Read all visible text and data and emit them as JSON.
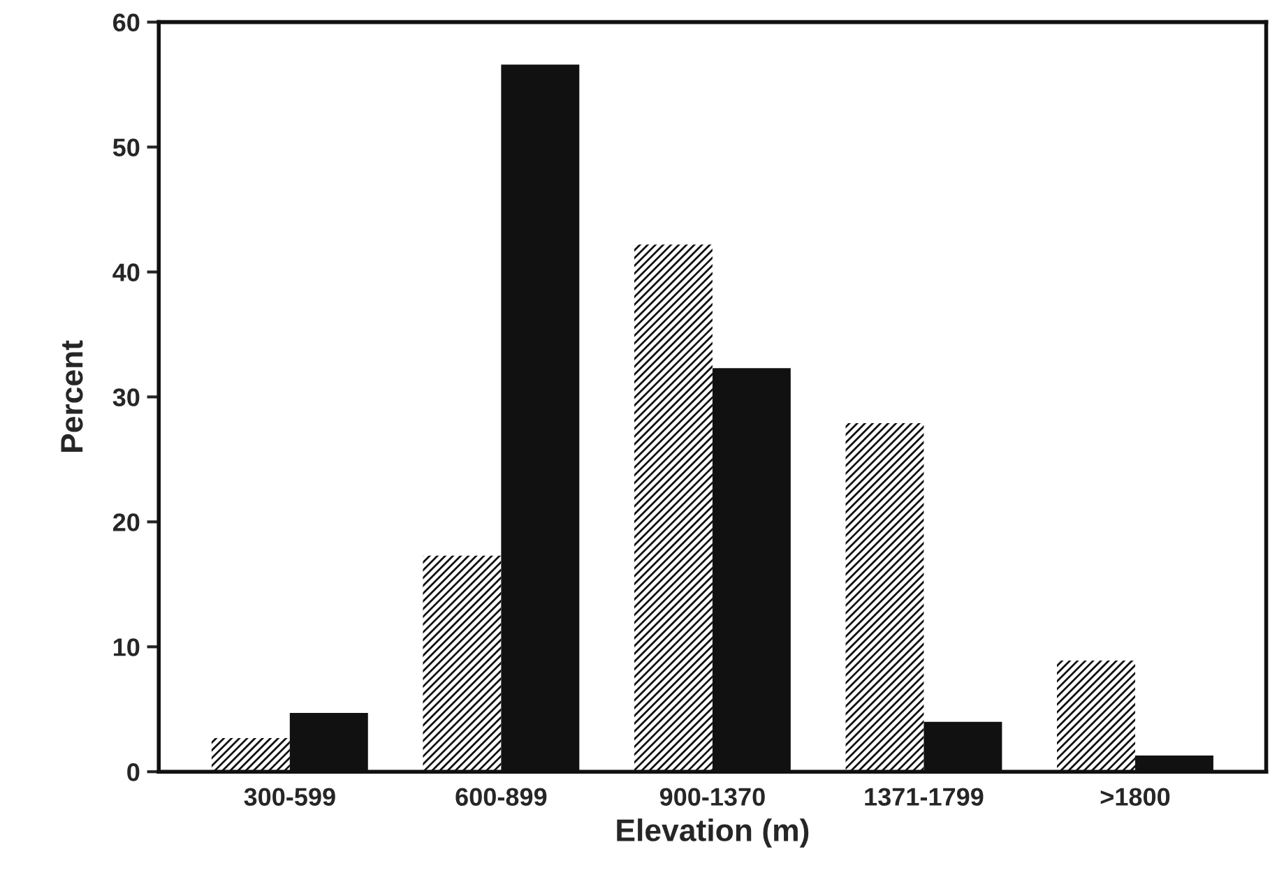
{
  "chart_data": {
    "type": "bar",
    "xlabel": "Elevation (m)",
    "ylabel": "Percent",
    "categories": [
      "300-599",
      "600-899",
      "900-1370",
      "1371-1799",
      ">1800"
    ],
    "series": [
      {
        "color": "#ffffff",
        "values": [
          2.7,
          17.3,
          42.2,
          27.9,
          8.9
        ]
      },
      {
        "color": "#111111",
        "values": [
          4.7,
          56.6,
          32.3,
          4.0,
          1.3
        ]
      }
    ],
    "ylim": [
      0,
      60
    ],
    "yticks": [
      0,
      10,
      20,
      30,
      40,
      50,
      60
    ],
    "grid": false,
    "legend": false
  }
}
